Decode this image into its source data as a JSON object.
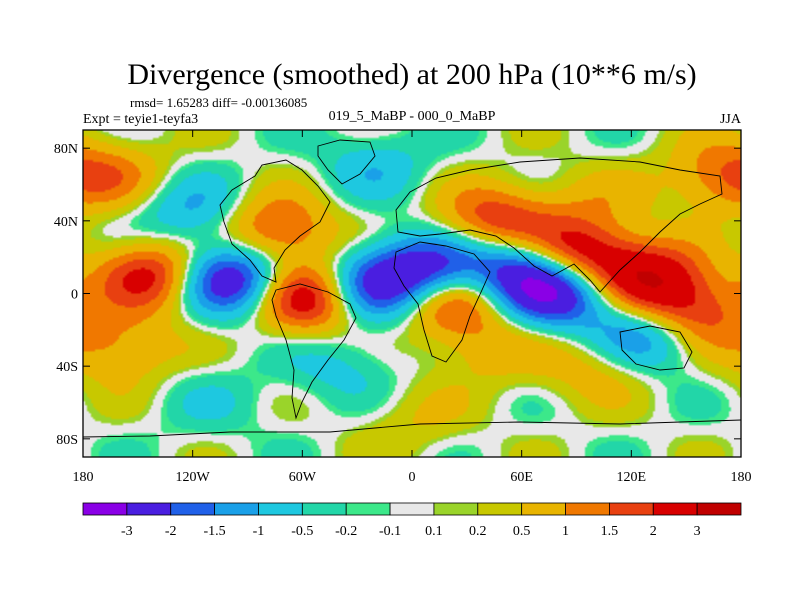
{
  "chart_data": {
    "type": "heatmap",
    "title": "Divergence (smoothed) at 200 hPa (10**6 m/s)",
    "stats_label": "rmsd= 1.65283 diff= -0.00136085",
    "experiment_label": "Expt = teyie1-teyfa3",
    "comparison_label": "019_5_MaBP - 000_0_MaBP",
    "season_label": "JJA",
    "x_ticks": [
      {
        "value": -180,
        "label": "180"
      },
      {
        "value": -120,
        "label": "120W"
      },
      {
        "value": -60,
        "label": "60W"
      },
      {
        "value": 0,
        "label": "0"
      },
      {
        "value": 60,
        "label": "60E"
      },
      {
        "value": 120,
        "label": "120E"
      },
      {
        "value": 180,
        "label": "180"
      }
    ],
    "y_ticks": [
      {
        "value": 80,
        "label": "80N"
      },
      {
        "value": 40,
        "label": "40N"
      },
      {
        "value": 0,
        "label": "0"
      },
      {
        "value": -40,
        "label": "40S"
      },
      {
        "value": -80,
        "label": "80S"
      }
    ],
    "x_range": [
      -180,
      180
    ],
    "y_range": [
      -90,
      90
    ],
    "colorbar": {
      "labels": [
        "-3",
        "-2",
        "-1.5",
        "-1",
        "-0.5",
        "-0.2",
        "-0.1",
        "0.1",
        "0.2",
        "0.5",
        "1",
        "1.5",
        "2",
        "3"
      ],
      "colors": [
        "#8a00e6",
        "#4a1ee0",
        "#2060e8",
        "#1aa0e8",
        "#1ec8e0",
        "#22d6a8",
        "#3ce88a",
        "#e8e8e8",
        "#9ad42a",
        "#c8c800",
        "#e8b400",
        "#f07800",
        "#e84010",
        "#d80000",
        "#c00000"
      ]
    },
    "features": [
      {
        "lon": -140,
        "lat": 10,
        "value": 2.5
      },
      {
        "lon": -100,
        "lat": 8,
        "value": -3.2
      },
      {
        "lon": -55,
        "lat": -2,
        "value": 3.2
      },
      {
        "lon": -25,
        "lat": 2,
        "value": -2.6
      },
      {
        "lon": 10,
        "lat": 12,
        "value": -3.0
      },
      {
        "lon": 20,
        "lat": -2,
        "value": 2.5
      },
      {
        "lon": 60,
        "lat": 15,
        "value": -2.4
      },
      {
        "lon": 88,
        "lat": 20,
        "value": 3.3
      },
      {
        "lon": 80,
        "lat": 2,
        "value": -3.2
      },
      {
        "lon": 130,
        "lat": 8,
        "value": 2.6
      },
      {
        "lon": 150,
        "lat": -12,
        "value": 2.2
      },
      {
        "lon": 130,
        "lat": -22,
        "value": -2.2
      },
      {
        "lon": -75,
        "lat": 35,
        "value": 1.9
      },
      {
        "lon": -120,
        "lat": 45,
        "value": -1.2
      },
      {
        "lon": 45,
        "lat": 40,
        "value": 2.0
      },
      {
        "lon": -160,
        "lat": 65,
        "value": 0.8
      },
      {
        "lon": 170,
        "lat": 65,
        "value": 1.4
      },
      {
        "lon": -160,
        "lat": -30,
        "value": 1.2
      },
      {
        "lon": -40,
        "lat": -40,
        "value": -0.7
      },
      {
        "lon": 40,
        "lat": -30,
        "value": 0.8
      },
      {
        "lon": 100,
        "lat": -40,
        "value": 0.9
      },
      {
        "lon": -20,
        "lat": 70,
        "value": -0.8
      },
      {
        "lon": 100,
        "lat": 50,
        "value": 0.6
      },
      {
        "lon": 0,
        "lat": -70,
        "value": 0.5
      },
      {
        "lon": -110,
        "lat": -60,
        "value": -0.4
      }
    ]
  }
}
